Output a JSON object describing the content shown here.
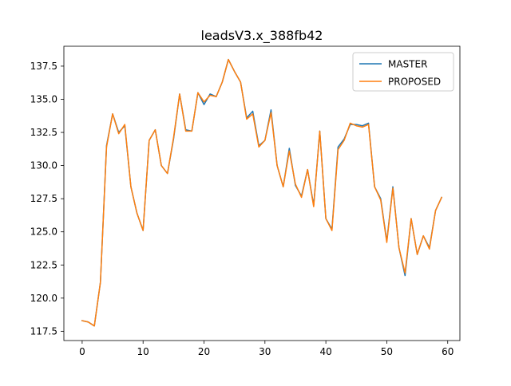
{
  "chart_data": {
    "type": "line",
    "title": "leadsV3.x_388fb42",
    "xlabel": "",
    "ylabel": "",
    "xlim": [
      -3,
      62
    ],
    "ylim": [
      116.8,
      139.0
    ],
    "xticks": [
      0,
      10,
      20,
      30,
      40,
      50,
      60
    ],
    "yticks": [
      117.5,
      120.0,
      122.5,
      125.0,
      127.5,
      130.0,
      132.5,
      135.0,
      137.5
    ],
    "xtick_labels": [
      "0",
      "10",
      "20",
      "30",
      "40",
      "50",
      "60"
    ],
    "ytick_labels": [
      "117.5",
      "120.0",
      "122.5",
      "125.0",
      "127.5",
      "130.0",
      "132.5",
      "135.0",
      "137.5"
    ],
    "grid": false,
    "legend_position": "top-right",
    "x": [
      0,
      1,
      2,
      3,
      4,
      5,
      6,
      7,
      8,
      9,
      10,
      11,
      12,
      13,
      14,
      15,
      16,
      17,
      18,
      19,
      20,
      21,
      22,
      23,
      24,
      25,
      26,
      27,
      28,
      29,
      30,
      31,
      32,
      33,
      34,
      35,
      36,
      37,
      38,
      39,
      40,
      41,
      42,
      43,
      44,
      45,
      46,
      47,
      48,
      49,
      50,
      51,
      52,
      53,
      54,
      55,
      56,
      57,
      58,
      59
    ],
    "series": [
      {
        "name": "MASTER",
        "color": "#1f77b4",
        "values": [
          118.3,
          118.2,
          117.9,
          121.2,
          131.5,
          133.9,
          132.5,
          133.0,
          128.4,
          126.4,
          125.1,
          131.9,
          132.7,
          130.0,
          129.4,
          132.0,
          135.4,
          132.7,
          132.6,
          135.5,
          134.6,
          135.4,
          135.2,
          136.3,
          138.0,
          137.1,
          136.3,
          133.6,
          134.1,
          131.5,
          131.9,
          134.2,
          130.0,
          128.4,
          131.3,
          128.5,
          127.7,
          129.7,
          127.0,
          132.6,
          126.0,
          125.2,
          131.4,
          132.0,
          133.1,
          133.1,
          133.0,
          133.2,
          128.4,
          127.5,
          124.3,
          128.4,
          123.8,
          121.7,
          126.0,
          123.3,
          124.7,
          123.8,
          126.6,
          127.6
        ]
      },
      {
        "name": "PROPOSED",
        "color": "#ff7f0e",
        "values": [
          118.3,
          118.2,
          117.9,
          121.2,
          131.4,
          133.9,
          132.4,
          133.1,
          128.4,
          126.4,
          125.1,
          131.9,
          132.7,
          130.0,
          129.4,
          132.1,
          135.4,
          132.6,
          132.6,
          135.5,
          134.8,
          135.3,
          135.2,
          136.3,
          138.0,
          137.1,
          136.3,
          133.5,
          133.9,
          131.4,
          131.9,
          134.0,
          130.0,
          128.4,
          131.1,
          128.6,
          127.6,
          129.7,
          126.9,
          132.6,
          126.0,
          125.1,
          131.2,
          131.9,
          133.2,
          133.0,
          132.9,
          133.1,
          128.4,
          127.4,
          124.2,
          128.3,
          123.8,
          121.9,
          126.0,
          123.3,
          124.7,
          123.7,
          126.6,
          127.6
        ]
      }
    ]
  }
}
